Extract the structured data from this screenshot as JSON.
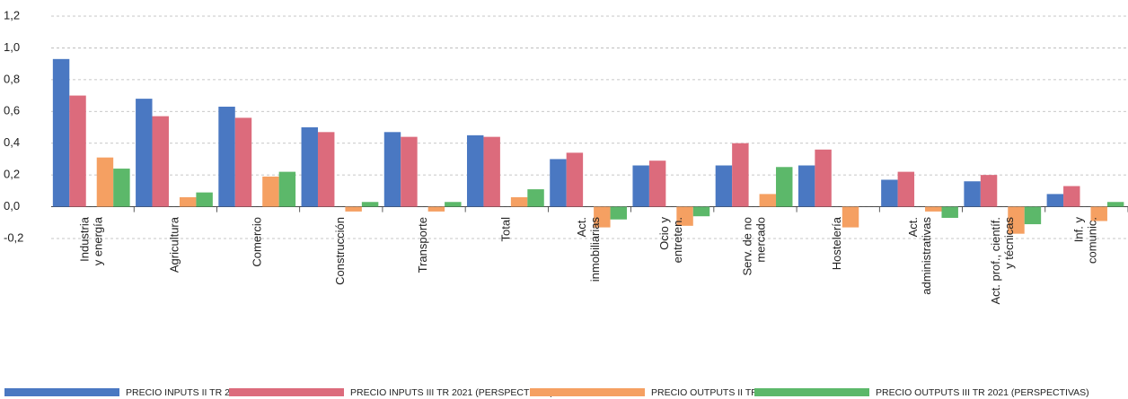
{
  "chart_data": {
    "type": "bar",
    "categories": [
      "Industria\ny energía",
      "Agricultura",
      "Comercio",
      "Construcción",
      "Transporte",
      "Total",
      "Act.\ninmobiliarias",
      "Ocio y\nentreten.",
      "Serv. de no\nmercado",
      "Hostelería",
      "Act.\nadministrativas",
      "Act. prof., científ.\ny técnicas",
      "Inf. y\ncomunic."
    ],
    "series": [
      {
        "name": "PRECIO INPUTS II TR 2021",
        "color": "#4a78c2",
        "values": [
          0.93,
          0.68,
          0.63,
          0.5,
          0.47,
          0.45,
          0.3,
          0.26,
          0.26,
          0.26,
          0.17,
          0.16,
          0.08
        ]
      },
      {
        "name": "PRECIO INPUTS III TR 2021 (PERSPECTIVAS)",
        "color": "#dc6b7c",
        "values": [
          0.7,
          0.57,
          0.56,
          0.47,
          0.44,
          0.44,
          0.34,
          0.29,
          0.4,
          0.36,
          0.22,
          0.2,
          0.13
        ]
      },
      {
        "name": "PRECIO OUTPUTS II TR 2021",
        "color": "#f5a062",
        "values": [
          0.31,
          0.06,
          0.19,
          -0.03,
          -0.03,
          0.06,
          -0.13,
          -0.12,
          0.08,
          -0.13,
          -0.03,
          -0.17,
          -0.09
        ]
      },
      {
        "name": "PRECIO OUTPUTS III TR 2021 (PERSPECTIVAS)",
        "color": "#5cb86a",
        "values": [
          0.24,
          0.09,
          0.22,
          0.03,
          0.03,
          0.11,
          -0.08,
          -0.06,
          0.25,
          null,
          -0.07,
          -0.11,
          0.03
        ]
      }
    ],
    "ylim": [
      -0.2,
      1.2
    ],
    "yticks": [
      {
        "value": -0.2,
        "label": "-0,2"
      },
      {
        "value": 0,
        "label": "0,0"
      },
      {
        "value": 0.2,
        "label": "0,2"
      },
      {
        "value": 0.4,
        "label": "0,4"
      },
      {
        "value": 0.6,
        "label": "0,6"
      },
      {
        "value": 0.8,
        "label": "0,8"
      },
      {
        "value": 1.0,
        "label": "1,0"
      },
      {
        "value": 1.2,
        "label": "1,2"
      }
    ],
    "grid": true
  }
}
